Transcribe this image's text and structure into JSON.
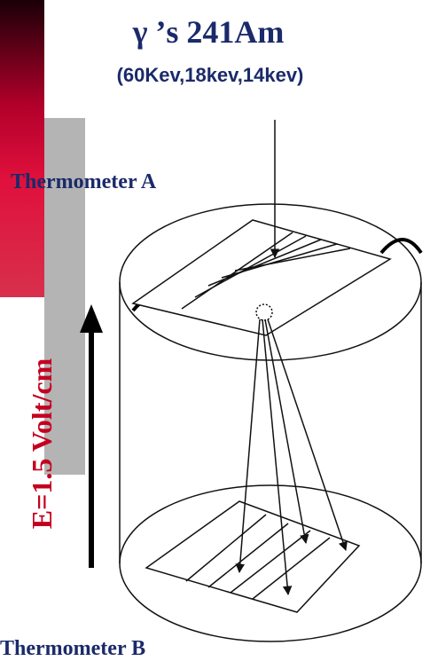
{
  "title": "γ ’s 241Am",
  "subtitle": "(60Kev,18kev,14kev)",
  "labels": {
    "thermometer_a": "Thermometer A",
    "field": "E=1.5 Volt/cm",
    "thermometer_b": "Thermometer B"
  }
}
